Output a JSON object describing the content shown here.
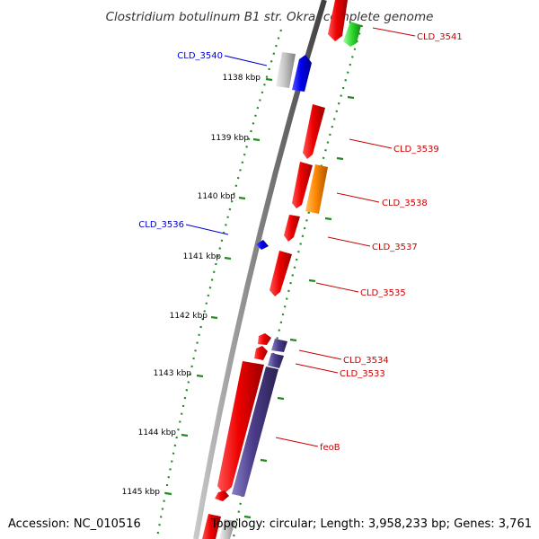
{
  "title": "Clostridium botulinum B1 str. Okra, complete genome",
  "footer": {
    "accession": "Accession: NC_010516",
    "stats": "Topology: circular; Length: 3,958,233 bp; Genes: 3,761"
  },
  "ticks": [
    "1138 kbp",
    "1139 kbp",
    "1140 kbp",
    "1141 kbp",
    "1142 kbp",
    "1143 kbp",
    "1144 kbp",
    "1145 kbp"
  ],
  "gene_labels": [
    {
      "text": "CLD_3541",
      "color": "#cc0000"
    },
    {
      "text": "CLD_3540",
      "color": "#0000cc"
    },
    {
      "text": "CLD_3539",
      "color": "#cc0000"
    },
    {
      "text": "CLD_3538",
      "color": "#cc0000"
    },
    {
      "text": "CLD_3536",
      "color": "#0000cc"
    },
    {
      "text": "CLD_3537",
      "color": "#cc0000"
    },
    {
      "text": "CLD_3535",
      "color": "#cc0000"
    },
    {
      "text": "CLD_3534",
      "color": "#cc0000"
    },
    {
      "text": "CLD_3533",
      "color": "#cc0000"
    },
    {
      "text": "feoB",
      "color": "#cc0000"
    }
  ],
  "colors": {
    "backbone": "#808080",
    "tick_dots": "#228B22",
    "gene_red": "#ee0000",
    "gene_blue": "#0000ee",
    "gene_green": "#22cc22",
    "gene_orange": "#ff8800",
    "gene_purple": "#4b3d8a",
    "gene_gray": "#b0b0b0"
  }
}
